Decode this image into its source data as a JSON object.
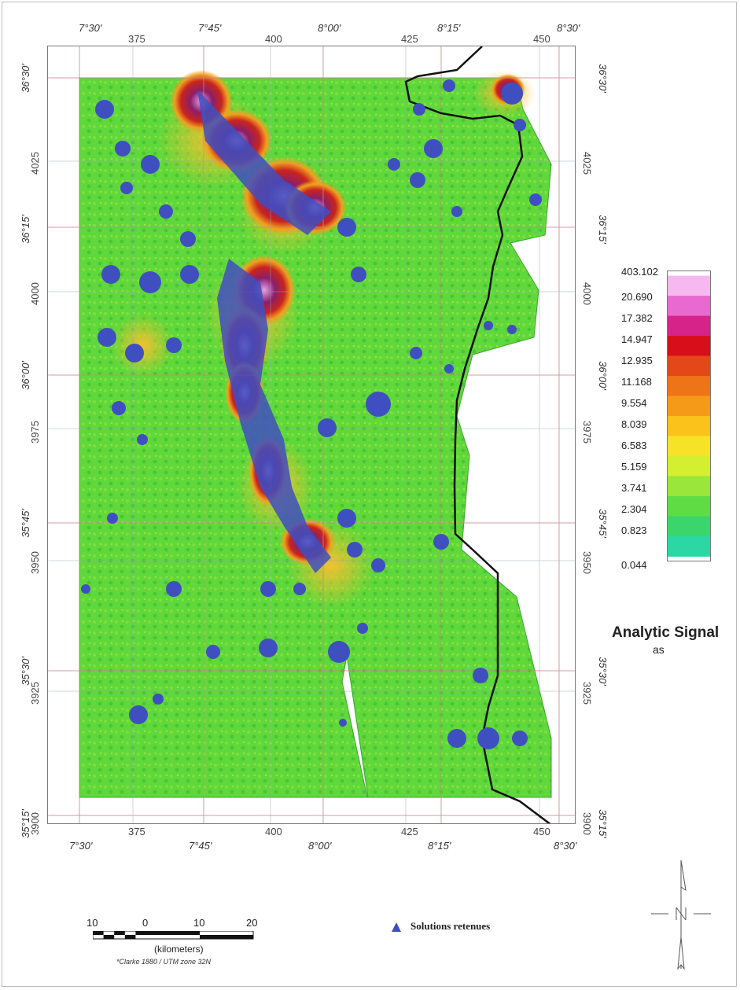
{
  "map": {
    "top_lon_labels": [
      "7°30'",
      "7°45'",
      "8°00'",
      "8°15'",
      "8°30'"
    ],
    "top_km_labels": [
      "375",
      "400",
      "425",
      "450"
    ],
    "bottom_lon_labels": [
      "7°30'",
      "7°45'",
      "8°00'",
      "8°15'",
      "8°30'"
    ],
    "bottom_km_labels": [
      "375",
      "400",
      "425",
      "450"
    ],
    "left_lat_labels": [
      "36°30'",
      "36°15'",
      "36°00'",
      "35°45'",
      "35°30'",
      "35°15'"
    ],
    "left_km_labels": [
      "4025",
      "4000",
      "3975",
      "3950",
      "3925",
      "3900"
    ],
    "right_lat_labels": [
      "36°30'",
      "36°15'",
      "36°00'",
      "35°45'",
      "35°30'",
      "35°15'"
    ],
    "right_km_labels": [
      "4025",
      "4000",
      "3975",
      "3950",
      "3925",
      "3900"
    ]
  },
  "legend": {
    "title": "Analytic Signal",
    "subtitle": "as",
    "values": [
      "403.102",
      "20.690",
      "17.382",
      "14.947",
      "12.935",
      "11.168",
      "9.554",
      "8.039",
      "6.583",
      "5.159",
      "3.741",
      "2.304",
      "0.823",
      "0.044"
    ],
    "colors": [
      "#f5b9f0",
      "#e86ad0",
      "#d6238a",
      "#d80f1a",
      "#e54818",
      "#ee7418",
      "#f59a18",
      "#fbc21c",
      "#f6e328",
      "#d4ee30",
      "#9ae63a",
      "#5fdc44",
      "#3ad66c",
      "#2bd8a4"
    ]
  },
  "solutions": {
    "label": "Solutions retenues",
    "icon": "triangle-icon",
    "color": "#3f4fc0"
  },
  "scale_bar": {
    "labels": [
      "10",
      "0",
      "10",
      "20"
    ],
    "unit": "(kilometers)",
    "projection": "*Clarke 1880 / UTM zone 32N"
  },
  "north_arrow": {
    "icon": "north-arrow-icon"
  }
}
